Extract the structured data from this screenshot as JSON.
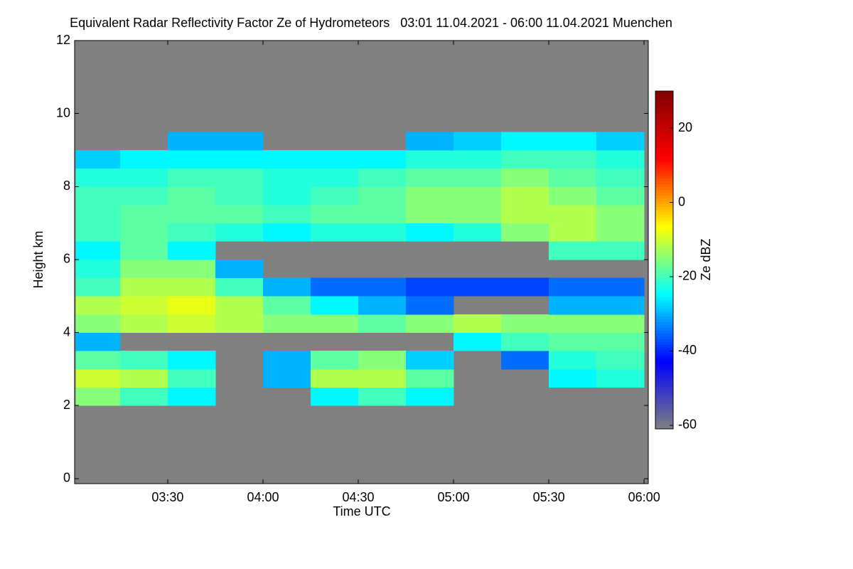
{
  "chart_data": {
    "type": "heatmap",
    "title": "Equivalent Radar Reflectivity Factor Ze of Hydrometeors   03:01 11.04.2021 - 06:00 11.04.2021 Muenchen",
    "x_label": "Time UTC",
    "y_label": "Height km",
    "colorbar_label": "Ze dBZ",
    "x_edges": [
      181,
      195,
      210,
      225,
      240,
      255,
      270,
      285,
      300,
      315,
      330,
      345,
      360
    ],
    "y_edges": [
      0,
      0.5,
      1,
      1.5,
      2,
      2.5,
      3,
      3.5,
      4,
      4.5,
      5,
      5.5,
      6,
      6.5,
      7,
      7.5,
      8,
      8.5,
      9,
      9.5,
      10,
      10.5,
      11,
      11.5,
      12
    ],
    "values": [
      [
        null,
        null,
        null,
        null,
        null,
        null,
        null,
        null,
        null,
        null,
        null,
        null
      ],
      [
        null,
        null,
        null,
        null,
        null,
        null,
        null,
        null,
        null,
        null,
        null,
        null
      ],
      [
        null,
        null,
        null,
        null,
        null,
        null,
        null,
        null,
        null,
        null,
        null,
        null
      ],
      [
        null,
        null,
        null,
        null,
        null,
        null,
        null,
        null,
        null,
        null,
        null,
        null
      ],
      [
        -15,
        -20,
        -25,
        null,
        null,
        -25,
        -20,
        -25,
        null,
        null,
        null,
        null
      ],
      [
        -10,
        -12,
        -20,
        null,
        -30,
        -12,
        -12,
        -18,
        null,
        null,
        -25,
        -22
      ],
      [
        -18,
        -20,
        -25,
        null,
        -30,
        -18,
        -15,
        -28,
        null,
        -35,
        -22,
        -20
      ],
      [
        -30,
        null,
        null,
        null,
        null,
        null,
        null,
        null,
        -25,
        -20,
        -18,
        -18
      ],
      [
        -15,
        -12,
        -10,
        -12,
        -15,
        -15,
        -18,
        -15,
        -12,
        -15,
        -15,
        -15
      ],
      [
        -12,
        -10,
        -8,
        -12,
        -18,
        -25,
        -30,
        -35,
        null,
        null,
        -30,
        -30
      ],
      [
        -20,
        -12,
        -12,
        -20,
        -30,
        -35,
        -35,
        -38,
        -38,
        -38,
        -35,
        -35
      ],
      [
        -22,
        -15,
        -15,
        -30,
        null,
        null,
        null,
        null,
        null,
        null,
        null,
        null
      ],
      [
        -25,
        -18,
        -25,
        null,
        null,
        null,
        null,
        null,
        null,
        null,
        -20,
        -20
      ],
      [
        -20,
        -18,
        -20,
        -22,
        -25,
        -22,
        -22,
        -25,
        -22,
        -15,
        -12,
        -15
      ],
      [
        -20,
        -18,
        -18,
        -18,
        -20,
        -18,
        -18,
        -15,
        -15,
        -12,
        -12,
        -15
      ],
      [
        -20,
        -20,
        -18,
        -20,
        -22,
        -20,
        -18,
        -15,
        -15,
        -12,
        -15,
        -18
      ],
      [
        -22,
        -22,
        -20,
        -20,
        -22,
        -22,
        -20,
        -18,
        -18,
        -15,
        -18,
        -20
      ],
      [
        -28,
        -25,
        -25,
        -25,
        -25,
        -25,
        -25,
        -22,
        -22,
        -20,
        -20,
        -22
      ],
      [
        null,
        null,
        -30,
        -30,
        null,
        null,
        null,
        -30,
        -28,
        -25,
        -25,
        -28
      ],
      [
        null,
        null,
        null,
        null,
        null,
        null,
        null,
        null,
        null,
        null,
        null,
        null
      ],
      [
        null,
        null,
        null,
        null,
        null,
        null,
        null,
        null,
        null,
        null,
        null,
        null
      ],
      [
        null,
        null,
        null,
        null,
        null,
        null,
        null,
        null,
        null,
        null,
        null,
        null
      ],
      [
        null,
        null,
        null,
        null,
        null,
        null,
        null,
        null,
        null,
        null,
        null,
        null
      ],
      [
        null,
        null,
        null,
        null,
        null,
        null,
        null,
        null,
        null,
        null,
        null,
        null
      ]
    ],
    "xlim": [
      180.7,
      361.3
    ],
    "xticks": [
      {
        "value": 210,
        "label": "03:30"
      },
      {
        "value": 240,
        "label": "04:00"
      },
      {
        "value": 270,
        "label": "04:30"
      },
      {
        "value": 300,
        "label": "05:00"
      },
      {
        "value": 330,
        "label": "05:30"
      },
      {
        "value": 360,
        "label": "06:00"
      }
    ],
    "ylim": [
      -0.14,
      12
    ],
    "yticks": [
      0,
      2,
      4,
      6,
      8,
      10,
      12
    ],
    "zlim": [
      -61,
      30
    ],
    "zticks": [
      -60,
      -40,
      -20,
      0,
      20
    ],
    "colormap": [
      "#808080",
      "#0000ff",
      "#00ffff",
      "#ffff00",
      "#ff0000",
      "#800000"
    ],
    "background": "#808080"
  }
}
